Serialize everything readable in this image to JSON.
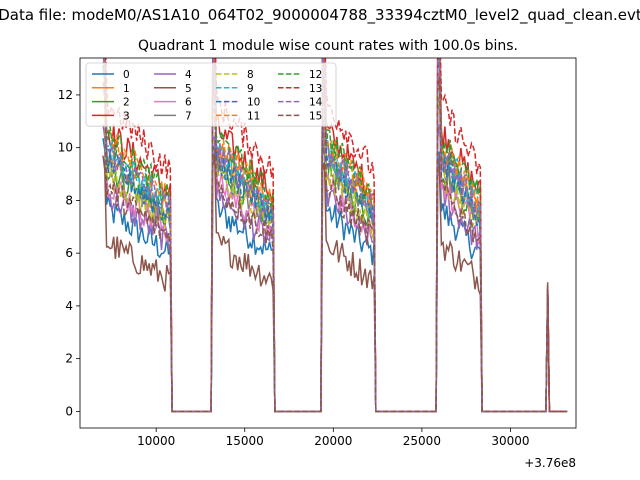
{
  "figure": {
    "suptitle": "Data file: modeM0/AS1A10_064T02_9000004788_33394cztM0_level2_quad_clean.evt",
    "background": "#ffffff"
  },
  "chart_data": {
    "type": "line",
    "title": "Quadrant 1 module wise count rates with 100.0s bins.",
    "xlabel": "",
    "ylabel": "",
    "x_offset_label": "+3.76e8",
    "x_offset": 376000000,
    "xlim": [
      5700,
      33700
    ],
    "ylim": [
      -0.63,
      13.4
    ],
    "xticks": [
      10000,
      15000,
      20000,
      25000,
      30000
    ],
    "xtick_labels": [
      "10000",
      "15000",
      "20000",
      "25000",
      "30000"
    ],
    "yticks": [
      0,
      2,
      4,
      6,
      8,
      10,
      12
    ],
    "ytick_labels": [
      "0",
      "2",
      "4",
      "6",
      "8",
      "10",
      "12"
    ],
    "legend_position": "upper left",
    "legend_columns": 4,
    "bin_width_s": 100,
    "x_range": [
      7000,
      33200
    ],
    "active_segments": [
      {
        "start": 7000,
        "end": 10800,
        "peak_start": true
      },
      {
        "start": 13200,
        "end": 16600,
        "peak_start": true
      },
      {
        "start": 19400,
        "end": 22300,
        "peak_start": true
      },
      {
        "start": 25900,
        "end": 28300,
        "peak_start": true
      }
    ],
    "spike": {
      "x": 32100,
      "value": 4.9
    },
    "series": [
      {
        "name": "0",
        "color": "#1f77b4",
        "dash": "solid",
        "level": 6.6
      },
      {
        "name": "1",
        "color": "#ff7f0e",
        "dash": "solid",
        "level": 8.4
      },
      {
        "name": "2",
        "color": "#2ca02c",
        "dash": "solid",
        "level": 8.0
      },
      {
        "name": "3",
        "color": "#d62728",
        "dash": "solid",
        "level": 9.2
      },
      {
        "name": "4",
        "color": "#9467bd",
        "dash": "solid",
        "level": 7.1
      },
      {
        "name": "5",
        "color": "#8c564b",
        "dash": "solid",
        "level": 5.5
      },
      {
        "name": "6",
        "color": "#e377c2",
        "dash": "solid",
        "level": 7.5
      },
      {
        "name": "7",
        "color": "#7f7f7f",
        "dash": "solid",
        "level": 8.1
      },
      {
        "name": "8",
        "color": "#bcbd22",
        "dash": "dashed",
        "level": 7.8
      },
      {
        "name": "9",
        "color": "#17becf",
        "dash": "dashed",
        "level": 8.6
      },
      {
        "name": "10",
        "color": "#1f77b4",
        "dash": "dashed",
        "level": 8.2
      },
      {
        "name": "11",
        "color": "#ff7f0e",
        "dash": "dashed",
        "level": 8.9
      },
      {
        "name": "12",
        "color": "#2ca02c",
        "dash": "dashed",
        "level": 9.0
      },
      {
        "name": "13",
        "color": "#d62728",
        "dash": "dashed",
        "level": 10.1
      },
      {
        "name": "14",
        "color": "#9467bd",
        "dash": "dashed",
        "level": 8.5
      },
      {
        "name": "15",
        "color": "#8c564b",
        "dash": "dashed",
        "level": 7.3
      }
    ]
  }
}
